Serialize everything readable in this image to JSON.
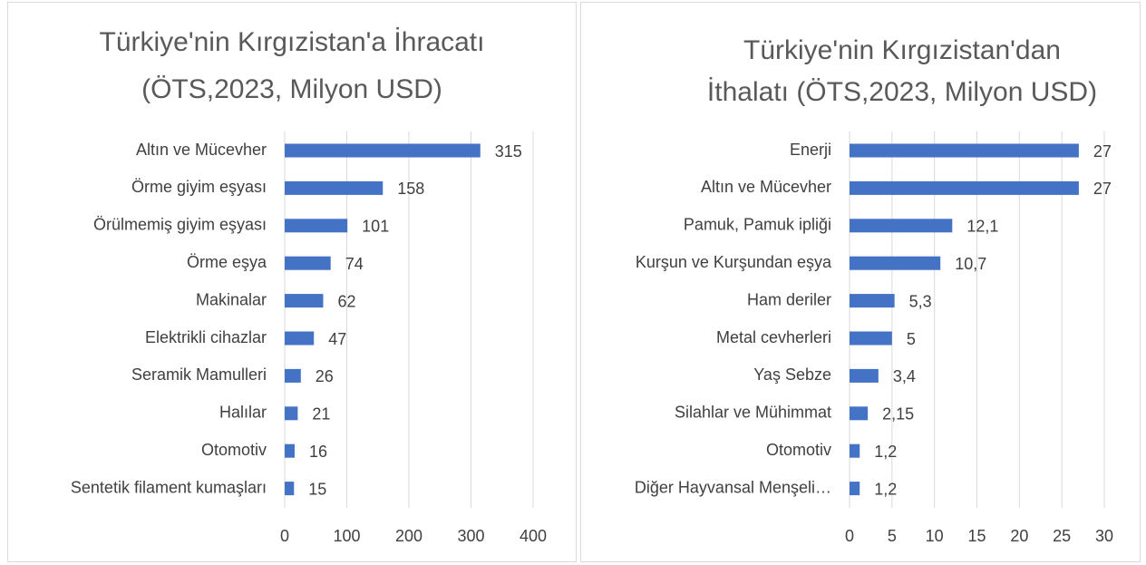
{
  "chart_data": [
    {
      "type": "bar",
      "title": [
        "Türkiye'nin Kırgızistan'a İhracatı",
        "(ÖTS,2023, Milyon USD)"
      ],
      "categories": [
        "Altın ve Mücevher",
        "Örme giyim eşyası",
        "Örülmemiş giyim eşyası",
        "Örme eşya",
        "Makinalar",
        "Elektrikli cihazlar",
        "Seramik Mamulleri",
        "Halılar",
        "Otomotiv",
        "Sentetik filament kumaşları"
      ],
      "values": [
        315,
        158,
        101,
        74,
        62,
        47,
        26,
        21,
        16,
        15
      ],
      "color": "#4472c4",
      "xlim": [
        0,
        400
      ],
      "xticks": [
        0,
        100,
        200,
        300,
        400
      ],
      "grid": true
    },
    {
      "type": "bar",
      "title": [
        "Türkiye'nin Kırgızistan'dan",
        "İthalatı (ÖTS,2023, Milyon USD)"
      ],
      "categories": [
        "Enerji",
        "Altın ve Mücevher",
        "Pamuk, Pamuk ipliği",
        "Kurşun ve Kurşundan eşya",
        "Ham deriler",
        "Metal cevherleri",
        "Yaş Sebze",
        "Silahlar ve Mühimmat",
        "Otomotiv",
        "Diğer Hayvansal Menşeli…"
      ],
      "values": [
        27,
        27,
        12.1,
        10.7,
        5.3,
        5,
        3.4,
        2.15,
        1.2,
        1.2
      ],
      "value_labels": [
        "27",
        "27",
        "12,1",
        "10,7",
        "5,3",
        "5",
        "3,4",
        "2,15",
        "1,2",
        "1,2"
      ],
      "color": "#4472c4",
      "xlim": [
        0,
        30
      ],
      "xticks": [
        0,
        5,
        10,
        15,
        20,
        25,
        30
      ],
      "grid": true
    }
  ]
}
